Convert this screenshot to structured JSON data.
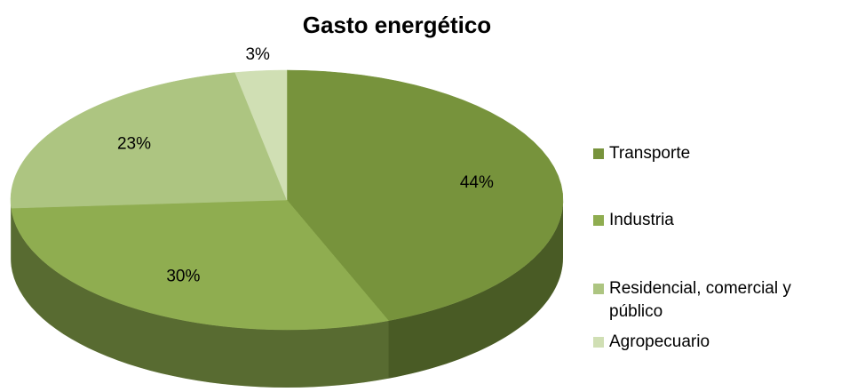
{
  "chart_data": {
    "type": "pie",
    "title": "Gasto energético",
    "categories": [
      "Transporte",
      "Industria",
      "Residencial, comercial y público",
      "Agropecuario"
    ],
    "values": [
      44,
      30,
      23,
      3
    ],
    "value_labels": [
      "44%",
      "30%",
      "23%",
      "3%"
    ],
    "colors": [
      "#77933c",
      "#8fad50",
      "#adc581",
      "#d0dfb4"
    ],
    "legend": "right"
  }
}
